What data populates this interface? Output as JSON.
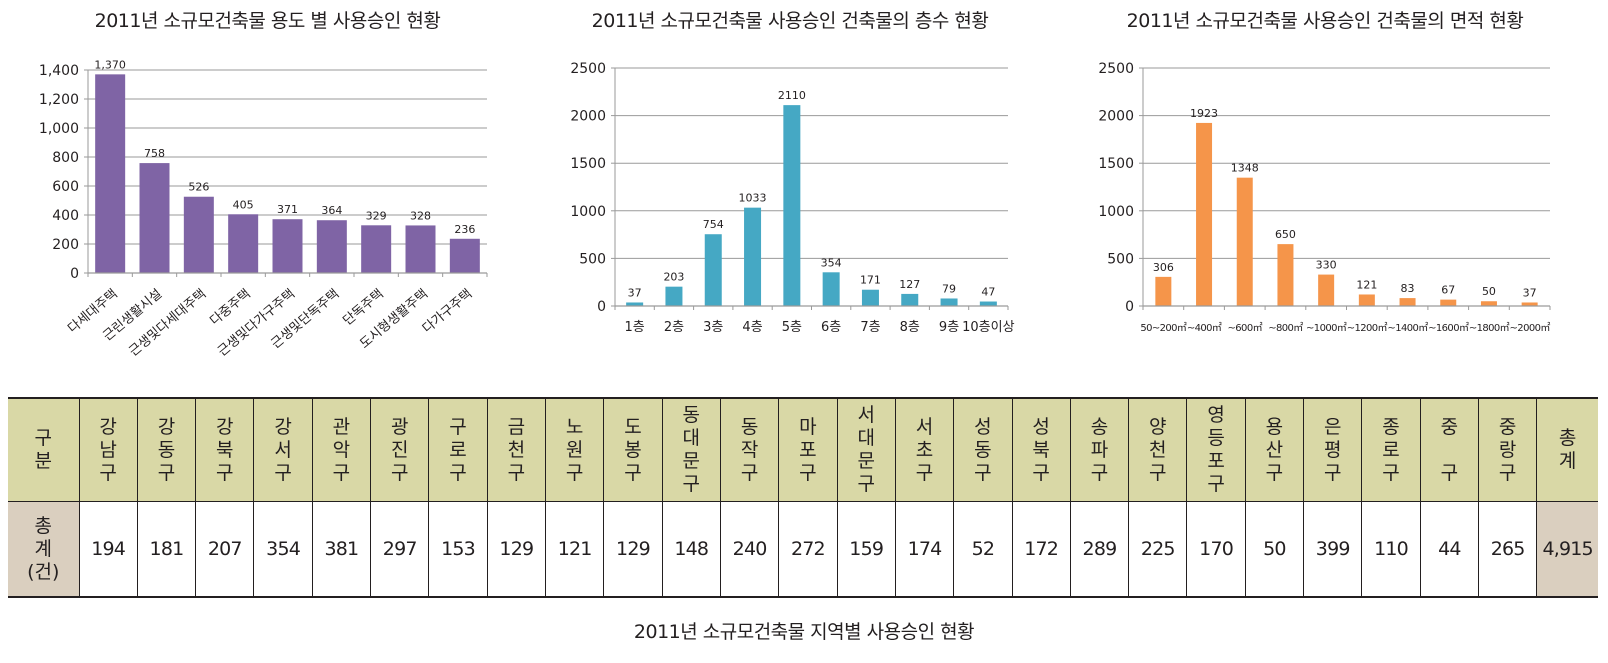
{
  "chart_data": [
    {
      "type": "bar",
      "title": "2011년 소규모건축물 용도 별 사용승인 현황",
      "categories": [
        "다세대주택",
        "근린생활시설",
        "근생및다세대주택",
        "다중주택",
        "근생및다가구주택",
        "근생및단독주택",
        "단독주택",
        "도시형생활주택",
        "다가구주택"
      ],
      "values": [
        1370,
        758,
        526,
        405,
        371,
        364,
        329,
        328,
        236
      ],
      "value_labels": [
        "1,370",
        "758",
        "526",
        "405",
        "371",
        "364",
        "329",
        "328",
        "236"
      ],
      "yticks": [
        "0",
        "200",
        "400",
        "600",
        "800",
        "1,000",
        "1,200",
        "1,400"
      ],
      "ytick_values": [
        0,
        200,
        400,
        600,
        800,
        1000,
        1200,
        1400
      ],
      "ylim": [
        0,
        1400
      ],
      "xlabel": "",
      "ylabel": "",
      "grid": true,
      "color": "#7f64a5"
    },
    {
      "type": "bar",
      "title": "2011년 소규모건축물 사용승인 건축물의 층수 현황",
      "categories": [
        "1층",
        "2층",
        "3층",
        "4층",
        "5층",
        "6층",
        "7층",
        "8층",
        "9층",
        "10층이상"
      ],
      "values": [
        37,
        203,
        754,
        1033,
        2110,
        354,
        171,
        127,
        79,
        47
      ],
      "value_labels": [
        "37",
        "203",
        "754",
        "1033",
        "2110",
        "354",
        "171",
        "127",
        "79",
        "47"
      ],
      "yticks": [
        "0",
        "500",
        "1000",
        "1500",
        "2000",
        "2500"
      ],
      "ytick_values": [
        0,
        500,
        1000,
        1500,
        2000,
        2500
      ],
      "ylim": [
        0,
        2500
      ],
      "xlabel": "",
      "ylabel": "",
      "grid": true,
      "color": "#45a8c4"
    },
    {
      "type": "bar",
      "title": "2011년 소규모건축물 사용승인 건축물의 면적 현황",
      "categories": [
        "50~200㎡",
        "~400㎡",
        "~600㎡",
        "~800㎡",
        "~1000㎡",
        "~1200㎡",
        "~1400㎡",
        "~1600㎡",
        "~1800㎡",
        "~2000㎡"
      ],
      "values": [
        306,
        1923,
        1348,
        650,
        330,
        121,
        83,
        67,
        50,
        37
      ],
      "value_labels": [
        "306",
        "1923",
        "1348",
        "650",
        "330",
        "121",
        "83",
        "67",
        "50",
        "37"
      ],
      "yticks": [
        "0",
        "500",
        "1000",
        "1500",
        "2000",
        "2500"
      ],
      "ytick_values": [
        0,
        500,
        1000,
        1500,
        2000,
        2500
      ],
      "ylim": [
        0,
        2500
      ],
      "xlabel": "",
      "ylabel": "",
      "grid": true,
      "color": "#f5954a"
    }
  ],
  "table": {
    "type": "table",
    "row_header_label": "구분",
    "row_label": "총계(건)",
    "row_label_lines": [
      "총",
      "계",
      "(건)"
    ],
    "columns": [
      "강남구",
      "강동구",
      "강북구",
      "강서구",
      "관악구",
      "광진구",
      "구로구",
      "금천구",
      "노원구",
      "도봉구",
      "동대문구",
      "동작구",
      "마포구",
      "서대문구",
      "서초구",
      "성동구",
      "성북구",
      "송파구",
      "양천구",
      "영등포구",
      "용산구",
      "은평구",
      "종로구",
      "중 구",
      "중랑구"
    ],
    "values": [
      "194",
      "181",
      "207",
      "354",
      "381",
      "297",
      "153",
      "129",
      "121",
      "129",
      "148",
      "240",
      "272",
      "159",
      "174",
      "52",
      "172",
      "289",
      "225",
      "170",
      "50",
      "399",
      "110",
      "44",
      "265"
    ],
    "total_label": "총계",
    "total_value": "4,915",
    "caption": "2011년 소규모건축물 지역별 사용승인 현황",
    "header_color": "#d9d8a6",
    "total_color": "#dacfbf"
  }
}
